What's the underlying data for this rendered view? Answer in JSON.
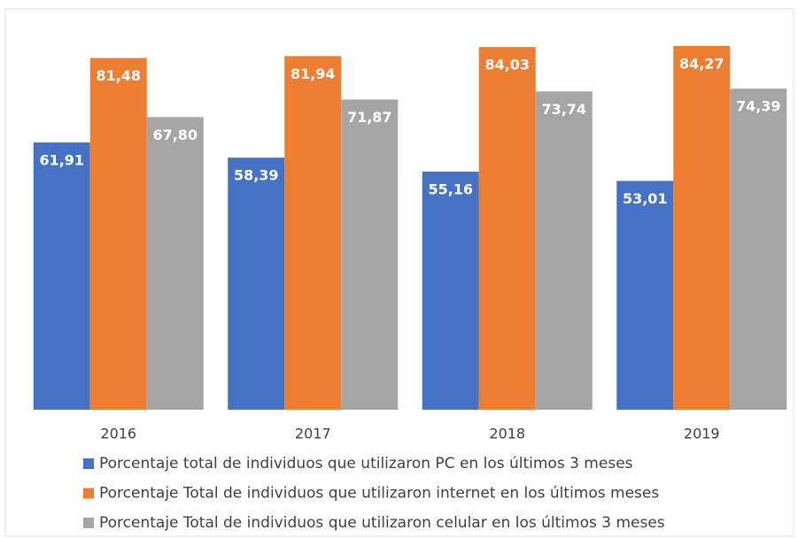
{
  "chart_data": {
    "type": "bar",
    "categories": [
      "2016",
      "2017",
      "2018",
      "2019"
    ],
    "series": [
      {
        "name": "Porcentaje total  de individuos que utilizaron PC en los últimos 3 meses",
        "color": "#4472c4",
        "values": [
          61.91,
          58.39,
          55.16,
          53.01
        ],
        "value_labels": [
          "61,91",
          "58,39",
          "55,16",
          "53,01"
        ]
      },
      {
        "name": "Porcentaje Total de individuos que utilizaron internet en los últimos meses",
        "color": "#ed7d31",
        "values": [
          81.48,
          81.94,
          84.03,
          84.27
        ],
        "value_labels": [
          "81,48",
          "81,94",
          "84,03",
          "84,27"
        ]
      },
      {
        "name": "Porcentaje Total de individuos que utilizaron celular en los últimos 3 meses",
        "color": "#a5a5a5",
        "values": [
          67.8,
          71.87,
          73.74,
          74.39
        ],
        "value_labels": [
          "67,80",
          "71,87",
          "73,74",
          "74,39"
        ]
      }
    ],
    "ylim": [
      0,
      90
    ]
  }
}
